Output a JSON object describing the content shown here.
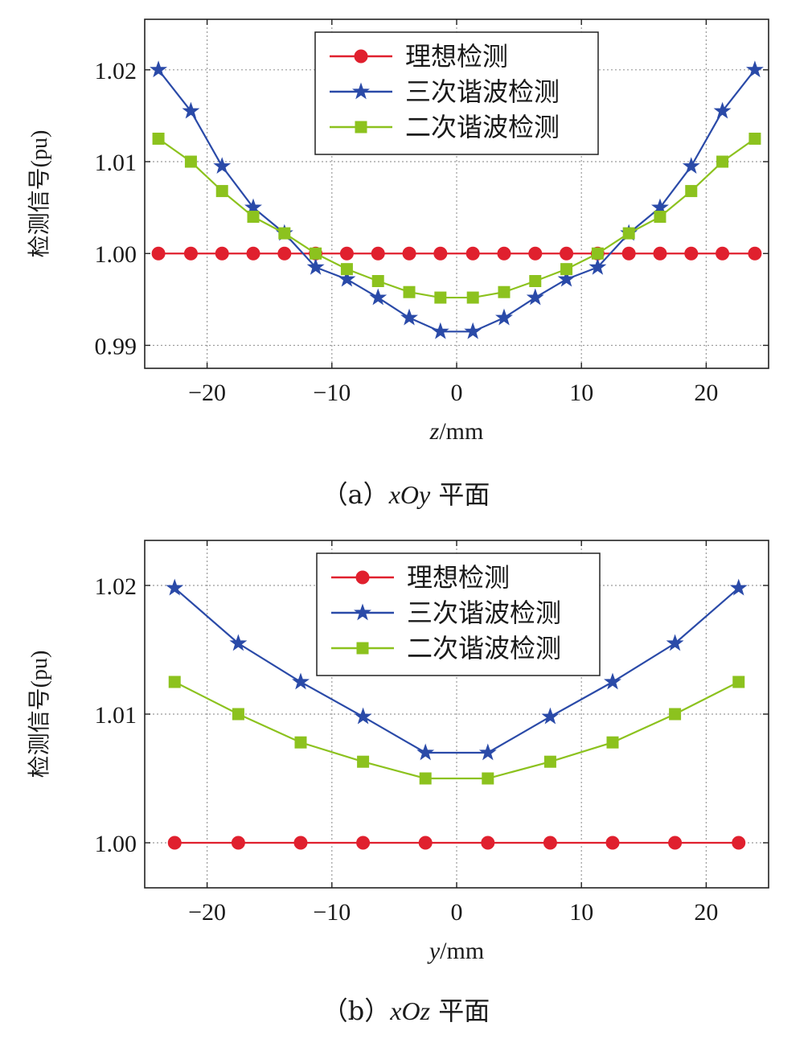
{
  "colors": {
    "ideal": "#e0202e",
    "third": "#2a4aa8",
    "second": "#8cc21e",
    "grid": "#9a9a9a",
    "axis": "#222222"
  },
  "chart_data": [
    {
      "type": "line",
      "caption_prefix": "（a）",
      "caption_var": "xOy",
      "caption_suffix": " 平面",
      "xlabel_var": "z",
      "xlabel_unit": "/mm",
      "ylabel": "检测信号(pu)",
      "xlim": [
        -25,
        25
      ],
      "ylim": [
        0.9875,
        1.0255
      ],
      "xticks": [
        -20,
        -10,
        0,
        10,
        20
      ],
      "xticklabels": [
        "−20",
        "−10",
        "0",
        "10",
        "20"
      ],
      "yticks": [
        0.99,
        1.0,
        1.01,
        1.02
      ],
      "yticklabels": [
        "0.99",
        "1.00",
        "1.01",
        "1.02"
      ],
      "grid": true,
      "legend_position": "top-center",
      "series": [
        {
          "name": "理想检测",
          "marker": "circle",
          "color": "#e0202e",
          "x": [
            -23.9,
            -21.3,
            -18.8,
            -16.3,
            -13.8,
            -11.3,
            -8.8,
            -6.3,
            -3.8,
            -1.3,
            1.3,
            3.8,
            6.3,
            8.8,
            11.3,
            13.8,
            16.3,
            18.8,
            21.3,
            23.9
          ],
          "y": [
            1.0,
            1.0,
            1.0,
            1.0,
            1.0,
            1.0,
            1.0,
            1.0,
            1.0,
            1.0,
            1.0,
            1.0,
            1.0,
            1.0,
            1.0,
            1.0,
            1.0,
            1.0,
            1.0,
            1.0
          ]
        },
        {
          "name": "三次谐波检测",
          "marker": "star",
          "color": "#2a4aa8",
          "x": [
            -23.9,
            -21.3,
            -18.8,
            -16.3,
            -13.8,
            -11.3,
            -8.8,
            -6.3,
            -3.8,
            -1.3,
            1.3,
            3.8,
            6.3,
            8.8,
            11.3,
            13.8,
            16.3,
            18.8,
            21.3,
            23.9
          ],
          "y": [
            1.02,
            1.0155,
            1.0095,
            1.005,
            1.0022,
            0.9985,
            0.9972,
            0.9952,
            0.993,
            0.9915,
            0.9915,
            0.993,
            0.9952,
            0.9972,
            0.9985,
            1.0022,
            1.005,
            1.0095,
            1.0155,
            1.02
          ]
        },
        {
          "name": "二次谐波检测",
          "marker": "square",
          "color": "#8cc21e",
          "x": [
            -23.9,
            -21.3,
            -18.8,
            -16.3,
            -13.8,
            -11.3,
            -8.8,
            -6.3,
            -3.8,
            -1.3,
            1.3,
            3.8,
            6.3,
            8.8,
            11.3,
            13.8,
            16.3,
            18.8,
            21.3,
            23.9
          ],
          "y": [
            1.0125,
            1.01,
            1.0068,
            1.004,
            1.0022,
            1.0,
            0.9983,
            0.997,
            0.9958,
            0.9952,
            0.9952,
            0.9958,
            0.997,
            0.9983,
            1.0,
            1.0022,
            1.004,
            1.0068,
            1.01,
            1.0125
          ]
        }
      ]
    },
    {
      "type": "line",
      "caption_prefix": "（b）",
      "caption_var": "xOz",
      "caption_suffix": " 平面",
      "xlabel_var": "y",
      "xlabel_unit": "/mm",
      "ylabel": "检测信号(pu)",
      "xlim": [
        -25,
        25
      ],
      "ylim": [
        0.9965,
        1.0235
      ],
      "xticks": [
        -20,
        -10,
        0,
        10,
        20
      ],
      "xticklabels": [
        "−20",
        "−10",
        "0",
        "10",
        "20"
      ],
      "yticks": [
        1.0,
        1.01,
        1.02
      ],
      "yticklabels": [
        "1.00",
        "1.01",
        "1.02"
      ],
      "grid": true,
      "legend_position": "top-center",
      "series": [
        {
          "name": "理想检测",
          "marker": "circle",
          "color": "#e0202e",
          "x": [
            -22.6,
            -17.5,
            -12.5,
            -7.5,
            -2.5,
            2.5,
            7.5,
            12.5,
            17.5,
            22.6
          ],
          "y": [
            1.0,
            1.0,
            1.0,
            1.0,
            1.0,
            1.0,
            1.0,
            1.0,
            1.0,
            1.0
          ]
        },
        {
          "name": "三次谐波检测",
          "marker": "star",
          "color": "#2a4aa8",
          "x": [
            -22.6,
            -17.5,
            -12.5,
            -7.5,
            -2.5,
            2.5,
            7.5,
            12.5,
            17.5,
            22.6
          ],
          "y": [
            1.0198,
            1.0155,
            1.0125,
            1.0098,
            1.007,
            1.007,
            1.0098,
            1.0125,
            1.0155,
            1.0198
          ]
        },
        {
          "name": "二次谐波检测",
          "marker": "square",
          "color": "#8cc21e",
          "x": [
            -22.6,
            -17.5,
            -12.5,
            -7.5,
            -2.5,
            2.5,
            7.5,
            12.5,
            17.5,
            22.6
          ],
          "y": [
            1.0125,
            1.01,
            1.0078,
            1.0063,
            1.005,
            1.005,
            1.0063,
            1.0078,
            1.01,
            1.0125
          ]
        }
      ]
    }
  ]
}
